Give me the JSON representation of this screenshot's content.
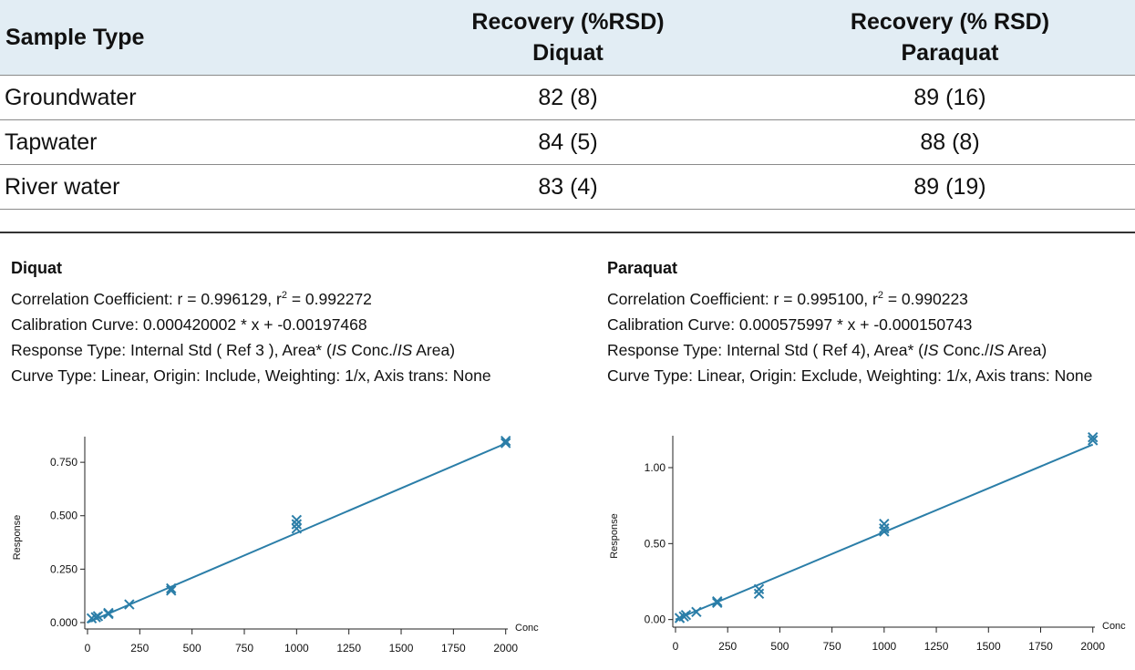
{
  "table": {
    "header": [
      "Sample Type",
      [
        "Recovery (%RSD)",
        "Diquat"
      ],
      [
        "Recovery (% RSD)",
        "Paraquat"
      ]
    ],
    "rows": [
      [
        "Groundwater",
        "82 (8)",
        "89 (16)"
      ],
      [
        "Tapwater",
        "84 (5)",
        "88 (8)"
      ],
      [
        "River water",
        "83 (4)",
        "89 (19)"
      ]
    ]
  },
  "panels": [
    {
      "title": "Diquat",
      "correlation": [
        "Correlation Coefficient: r = 0.996129, r",
        "2",
        " = 0.992272"
      ],
      "calibration": "Calibration Curve: 0.000420002 * x + -0.00197468",
      "response": [
        "Response Type: Internal Std ( Ref 3 ), Area* (",
        "IS",
        " Conc./",
        "IS",
        " Area)"
      ],
      "curve": "Curve Type: Linear, Origin: Include, Weighting:  1/x, Axis trans: None"
    },
    {
      "title": "Paraquat",
      "correlation": [
        "Correlation Coefficient: r = 0.995100, r",
        "2",
        " = 0.990223"
      ],
      "calibration": "Calibration Curve: 0.000575997 * x + -0.000150743",
      "response": [
        "Response Type: Internal Std ( Ref 4), Area* (",
        "IS",
        " Conc./",
        "IS",
        " Area)"
      ],
      "curve": "Curve Type: Linear, Origin: Exclude, Weighting:  1/x, Axis trans: None"
    }
  ],
  "chart_data": [
    {
      "type": "scatter",
      "x_label": "Conc",
      "y_label": "Response",
      "color": "#2b7ea8",
      "x": [
        20,
        40,
        50,
        100,
        100,
        200,
        400,
        400,
        1000,
        1000,
        1000,
        2000,
        2000
      ],
      "values": [
        0.02,
        0.025,
        0.03,
        0.045,
        0.04,
        0.085,
        0.16,
        0.15,
        0.48,
        0.46,
        0.44,
        0.85,
        0.84
      ],
      "fit_x": [
        0,
        2000
      ],
      "fit_values": [
        0,
        0.838
      ],
      "xlim": [
        -13,
        2010
      ],
      "ylim": [
        -0.03,
        0.87
      ],
      "xticks": [
        0,
        250,
        500,
        750,
        1000,
        1250,
        1500,
        1750,
        2000
      ],
      "yticks": [
        {
          "value": 0,
          "label": "0.000"
        },
        {
          "value": 0.25,
          "label": "0.250"
        },
        {
          "value": 0.5,
          "label": "0.500"
        },
        {
          "value": 0.75,
          "label": "0.750"
        }
      ]
    },
    {
      "type": "scatter",
      "x_label": "Conc",
      "y_label": "Response",
      "color": "#2b7ea8",
      "x": [
        20,
        40,
        50,
        100,
        200,
        200,
        400,
        400,
        1000,
        1000,
        1000,
        2000,
        2000
      ],
      "values": [
        0.01,
        0.02,
        0.03,
        0.05,
        0.12,
        0.11,
        0.2,
        0.17,
        0.63,
        0.6,
        0.58,
        1.2,
        1.18
      ],
      "fit_x": [
        0,
        2000
      ],
      "fit_values": [
        0,
        1.152
      ],
      "xlim": [
        -13,
        2010
      ],
      "ylim": [
        -0.05,
        1.21
      ],
      "xticks": [
        0,
        250,
        500,
        750,
        1000,
        1250,
        1500,
        1750,
        2000
      ],
      "yticks": [
        {
          "value": 0,
          "label": "0.00"
        },
        {
          "value": 0.5,
          "label": "0.50"
        },
        {
          "value": 1,
          "label": "1.00"
        }
      ]
    }
  ]
}
